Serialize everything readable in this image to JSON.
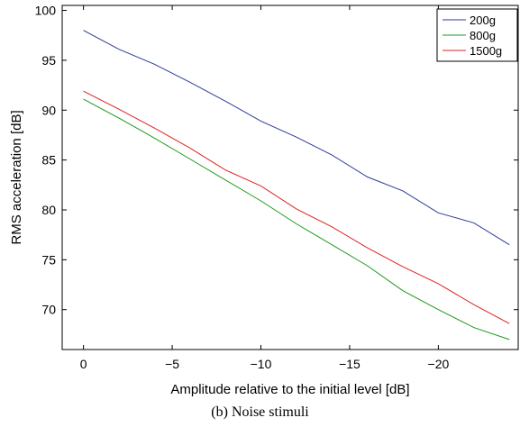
{
  "chart_data": {
    "type": "line",
    "xlabel": "Amplitude relative to the initial level [dB]",
    "ylabel": "RMS acceleration [dB]",
    "xlim": [
      1.2,
      -24.5
    ],
    "ylim": [
      66,
      100.5
    ],
    "xticks": [
      0,
      -5,
      -10,
      -15,
      -20
    ],
    "xtick_labels": [
      "0",
      "−5",
      "−10",
      "−15",
      "−20"
    ],
    "yticks": [
      70,
      75,
      80,
      85,
      90,
      95,
      100
    ],
    "grid": false,
    "legend_position": "top-right",
    "series": [
      {
        "name": "200g",
        "color": "#2b3a9a",
        "x": [
          0,
          -2,
          -4,
          -6,
          -8,
          -10,
          -12,
          -14,
          -16,
          -18,
          -20,
          -22,
          -24
        ],
        "y": [
          98.0,
          96.1,
          94.6,
          92.8,
          90.9,
          88.9,
          87.3,
          85.5,
          83.3,
          81.9,
          79.7,
          78.7,
          76.5
        ]
      },
      {
        "name": "800g",
        "color": "#1a9a1a",
        "x": [
          0,
          -2,
          -4,
          -6,
          -8,
          -10,
          -12,
          -14,
          -16,
          -18,
          -20,
          -22,
          -24
        ],
        "y": [
          91.1,
          89.2,
          87.2,
          85.1,
          83.0,
          80.9,
          78.6,
          76.5,
          74.4,
          71.9,
          70.0,
          68.2,
          67.0
        ]
      },
      {
        "name": "1500g",
        "color": "#e02020",
        "x": [
          0,
          -2,
          -4,
          -6,
          -8,
          -10,
          -12,
          -14,
          -16,
          -18,
          -20,
          -22,
          -24
        ],
        "y": [
          91.9,
          90.1,
          88.2,
          86.2,
          84.0,
          82.4,
          80.1,
          78.3,
          76.2,
          74.3,
          72.6,
          70.5,
          68.6
        ]
      }
    ]
  },
  "caption": "(b) Noise stimuli"
}
